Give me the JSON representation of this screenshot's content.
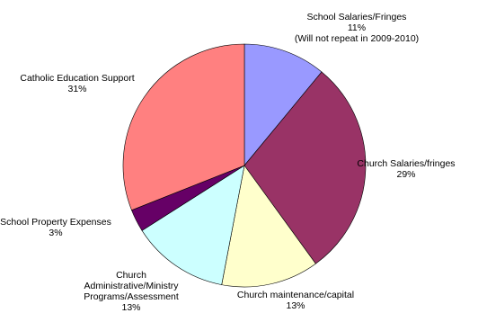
{
  "chart_data": {
    "type": "pie",
    "start_angle_deg": 0,
    "direction": "clockwise",
    "slices": [
      {
        "label": [
          "School Salaries/Fringes",
          "11%",
          "(Will not repeat in 2009-2010)"
        ],
        "value": 11,
        "color": "#9999ff"
      },
      {
        "label": [
          "Church Salaries/fringes",
          "29%"
        ],
        "value": 29,
        "color": "#993366"
      },
      {
        "label": [
          "Church maintenance/capital",
          "13%"
        ],
        "value": 13,
        "color": "#ffffcc"
      },
      {
        "label": [
          "Church",
          "Administrative/Ministry",
          "Programs/Assessment",
          "13%"
        ],
        "value": 13,
        "color": "#ccffff"
      },
      {
        "label": [
          "School Property Expenses",
          "3%"
        ],
        "value": 3,
        "color": "#660066"
      },
      {
        "label": [
          "Catholic Education Support",
          "31%"
        ],
        "value": 31,
        "color": "#ff8080"
      }
    ]
  }
}
